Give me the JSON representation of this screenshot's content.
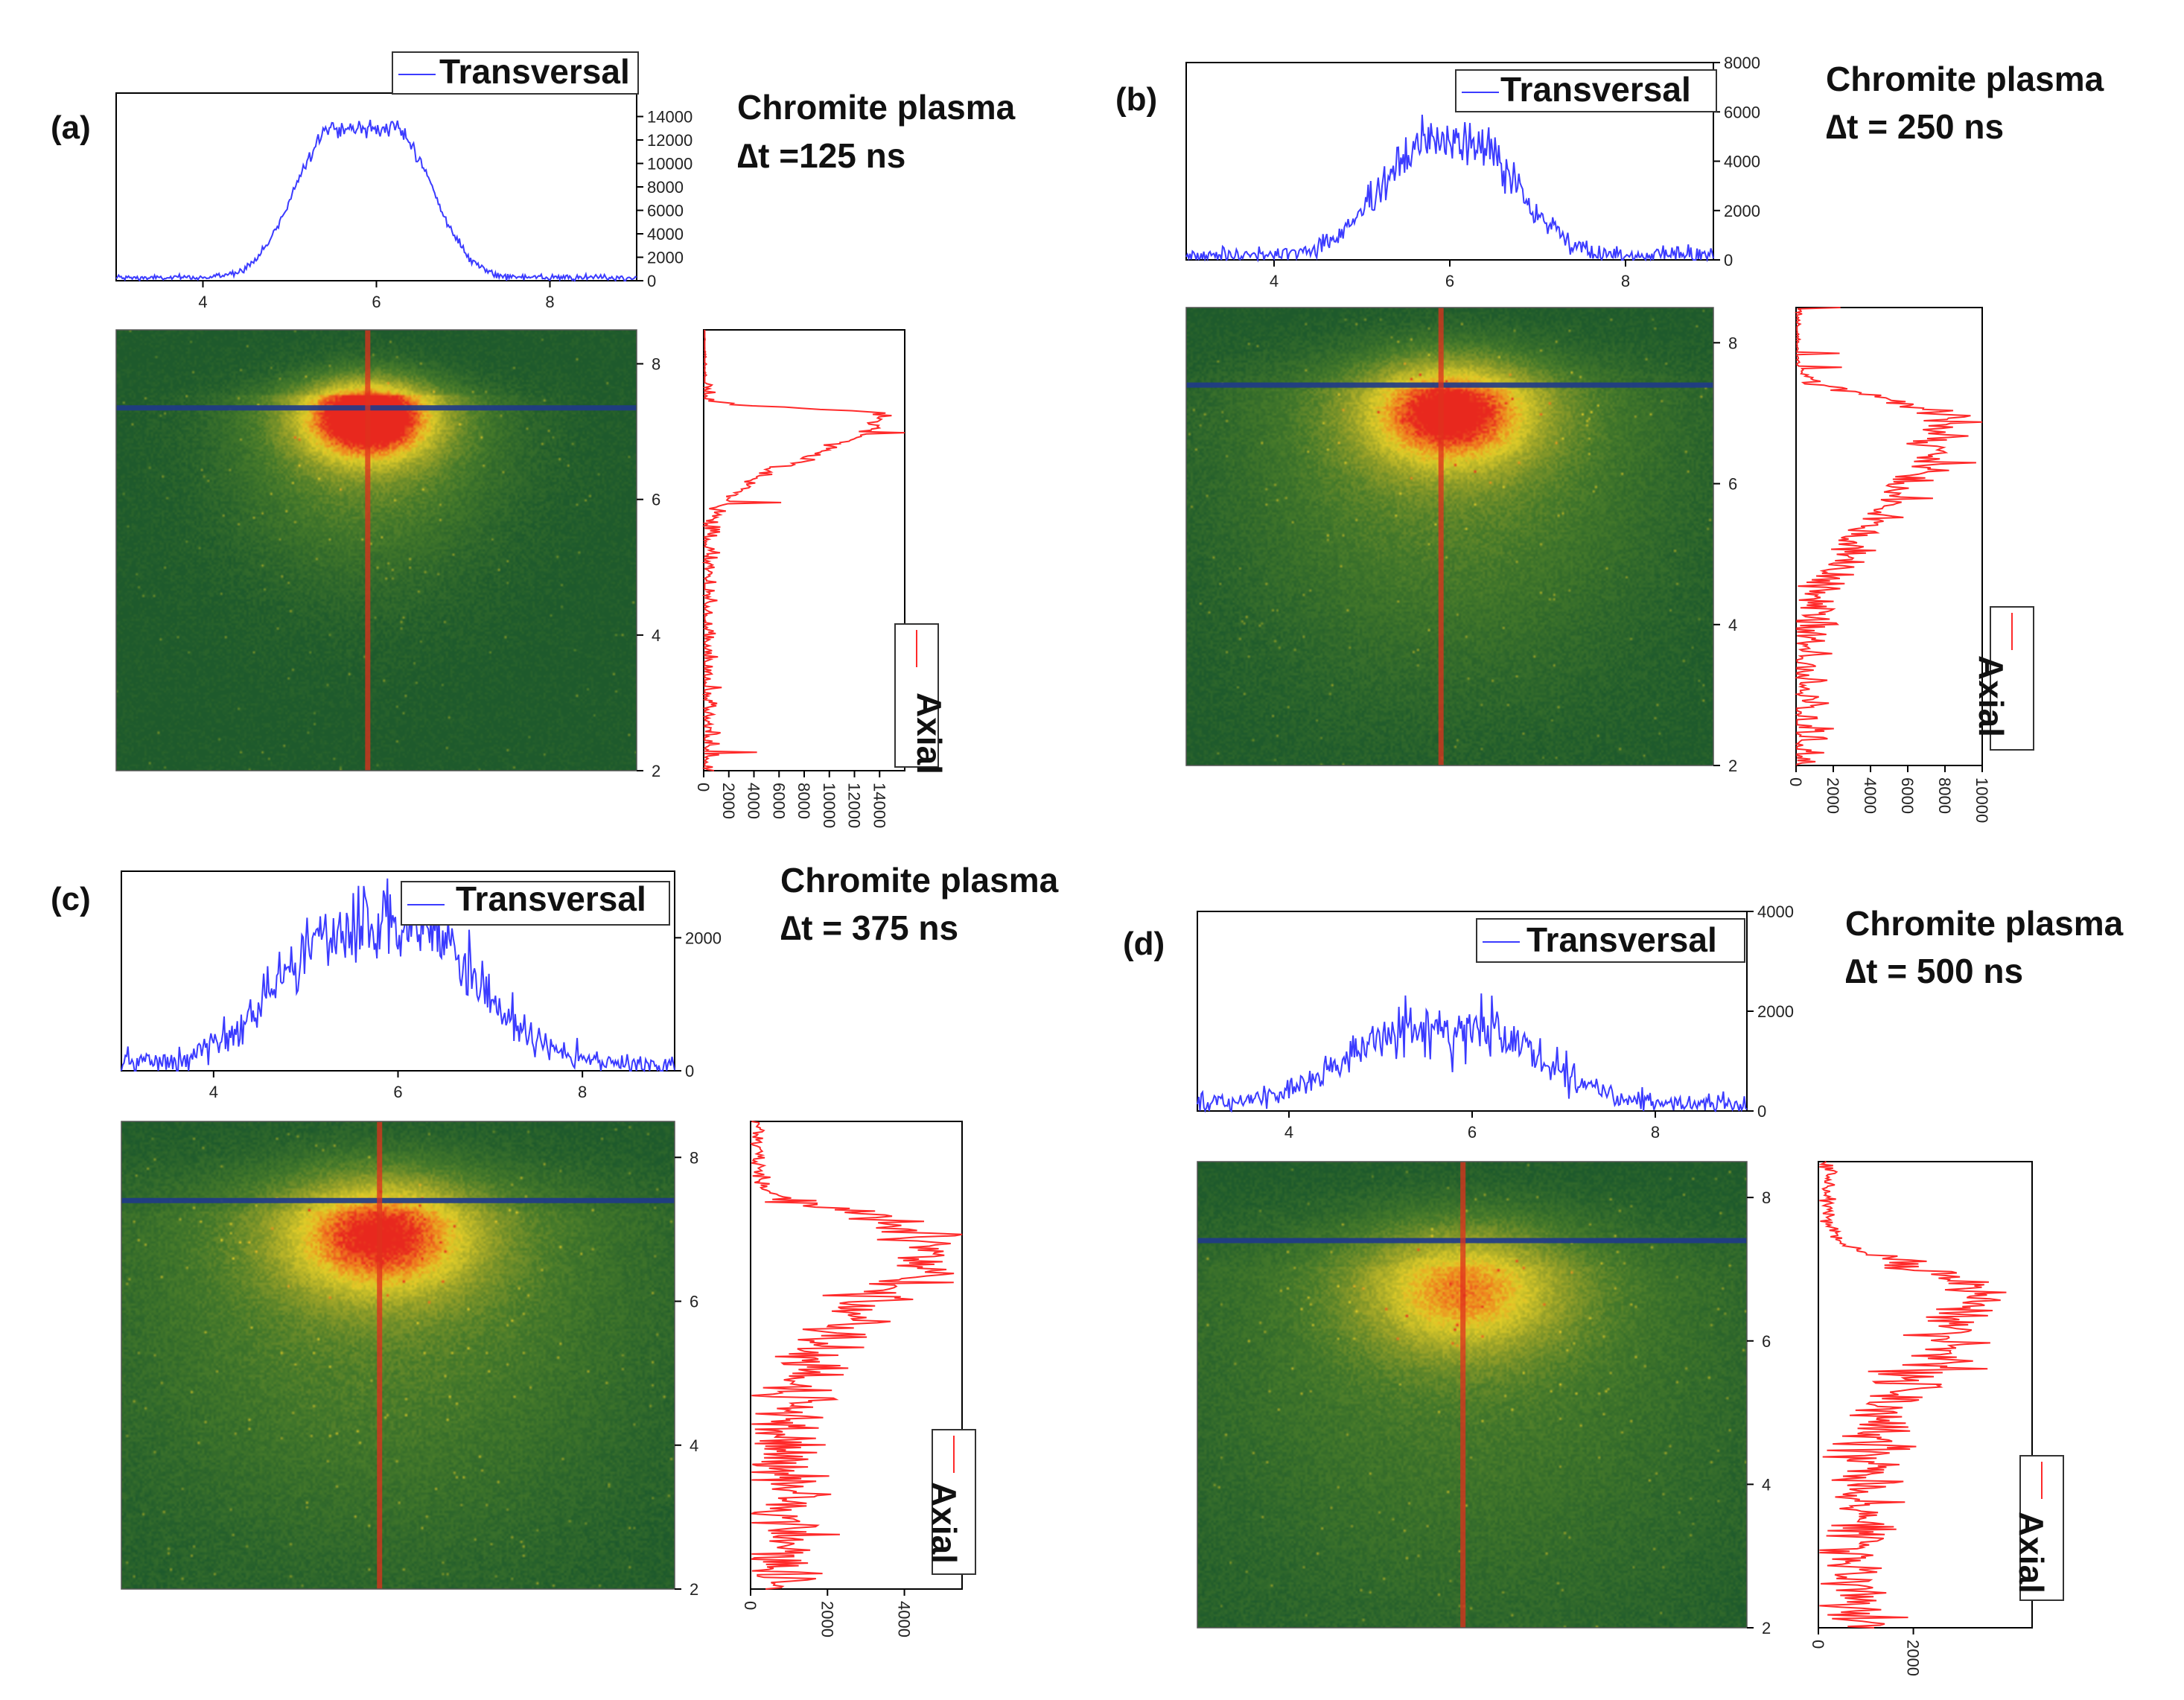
{
  "colors": {
    "transversal": "#3b3bff",
    "axial": "#ff2a2a",
    "cursor_h": "#1f3a8a",
    "cursor_v": "#e0301e",
    "image_bg": "#1e5a2c",
    "axis": "#000000"
  },
  "chart_data": [
    {
      "type": "line",
      "panel": "(a)",
      "title": "Chromite plasma",
      "delay": "∆t =125 ns",
      "transversal": {
        "legend": "Transversal",
        "xlim": [
          3,
          9
        ],
        "ylim": [
          0,
          16000
        ],
        "xticks": [
          4,
          6,
          8
        ],
        "yticks": [
          0,
          2000,
          4000,
          6000,
          8000,
          10000,
          12000,
          14000
        ],
        "profile": {
          "center": 5.85,
          "width": 0.62,
          "peak": 13000,
          "base": 250,
          "noise": 350,
          "flat": 0.35
        }
      },
      "image": {
        "xlim": [
          3,
          9
        ],
        "ylim": [
          2,
          8.5
        ],
        "yticks": [
          2,
          4,
          6,
          8
        ],
        "cursor_x": 5.9,
        "cursor_y": 7.35,
        "hot_x": 5.9,
        "hot_y": 7.2,
        "spread": 0.55,
        "halo": 1.1,
        "intensity": 1.0
      },
      "axial": {
        "legend": "Axial",
        "ylim": [
          2,
          8.5
        ],
        "xlim": [
          0,
          16000
        ],
        "xticks": [
          0,
          2000,
          4000,
          6000,
          8000,
          10000,
          12000,
          14000
        ],
        "profile": {
          "peak_pos": 7.25,
          "peak": 14000,
          "rise": 0.12,
          "decay": 0.85,
          "base": 200,
          "noise": 500
        }
      }
    },
    {
      "type": "line",
      "panel": "(b)",
      "title": "Chromite plasma",
      "delay": "∆t = 250 ns",
      "transversal": {
        "legend": "Transversal",
        "xlim": [
          3,
          9
        ],
        "ylim": [
          0,
          8000
        ],
        "xticks": [
          4,
          6,
          8
        ],
        "yticks": [
          0,
          2000,
          4000,
          6000,
          8000
        ],
        "profile": {
          "center": 6.0,
          "width": 0.8,
          "peak": 4800,
          "base": 200,
          "noise": 500,
          "flat": 0.2
        }
      },
      "image": {
        "xlim": [
          3,
          9
        ],
        "ylim": [
          2,
          8.5
        ],
        "yticks": [
          2,
          4,
          6,
          8
        ],
        "cursor_x": 5.9,
        "cursor_y": 7.4,
        "hot_x": 6.0,
        "hot_y": 7.0,
        "spread": 0.7,
        "halo": 1.8,
        "intensity": 0.85
      },
      "axial": {
        "legend": "Axial",
        "ylim": [
          2,
          8.5
        ],
        "xlim": [
          0,
          10000
        ],
        "xticks": [
          0,
          2000,
          4000,
          6000,
          8000,
          10000
        ],
        "profile": {
          "peak_pos": 6.95,
          "peak": 7800,
          "rise": 0.35,
          "decay": 1.8,
          "base": 300,
          "noise": 700
        }
      }
    },
    {
      "type": "line",
      "panel": "(c)",
      "title": "Chromite plasma",
      "delay": "∆t = 375 ns",
      "transversal": {
        "legend": "Transversal",
        "xlim": [
          3,
          9
        ],
        "ylim": [
          0,
          3000
        ],
        "xticks": [
          4,
          6,
          8
        ],
        "yticks": [
          0,
          2000
        ],
        "profile": {
          "center": 5.8,
          "width": 1.0,
          "peak": 2150,
          "base": 100,
          "noise": 280,
          "flat": 0.35
        }
      },
      "image": {
        "xlim": [
          3,
          9
        ],
        "ylim": [
          2,
          8.5
        ],
        "yticks": [
          2,
          4,
          6,
          8
        ],
        "cursor_x": 5.8,
        "cursor_y": 7.4,
        "hot_x": 5.8,
        "hot_y": 6.9,
        "spread": 0.75,
        "halo": 2.2,
        "intensity": 0.8
      },
      "axial": {
        "legend": "Axial",
        "ylim": [
          2,
          8.5
        ],
        "xlim": [
          0,
          5500
        ],
        "xticks": [
          0,
          2000,
          4000
        ],
        "profile": {
          "peak_pos": 6.95,
          "peak": 4800,
          "rise": 0.35,
          "decay": 1.3,
          "base": 900,
          "noise": 550
        }
      }
    },
    {
      "type": "line",
      "panel": "(d)",
      "title": "Chromite plasma",
      "delay": "∆t = 500 ns",
      "transversal": {
        "legend": "Transversal",
        "xlim": [
          3,
          9
        ],
        "ylim": [
          0,
          4000
        ],
        "xticks": [
          4,
          6,
          8
        ],
        "yticks": [
          0,
          2000,
          4000
        ],
        "profile": {
          "center": 5.7,
          "width": 1.05,
          "peak": 1650,
          "base": 150,
          "noise": 280,
          "flat": 0.3
        }
      },
      "image": {
        "xlim": [
          3,
          9
        ],
        "ylim": [
          2,
          8.5
        ],
        "yticks": [
          2,
          4,
          6,
          8
        ],
        "cursor_x": 5.9,
        "cursor_y": 7.4,
        "hot_x": 5.9,
        "hot_y": 6.7,
        "spread": 0.8,
        "halo": 2.4,
        "intensity": 0.65
      },
      "axial": {
        "legend": "Axial",
        "ylim": [
          2,
          8.5
        ],
        "xlim": [
          0,
          4500
        ],
        "xticks": [
          0,
          2000
        ],
        "profile": {
          "peak_pos": 6.7,
          "peak": 3300,
          "rise": 0.45,
          "decay": 1.4,
          "base": 900,
          "noise": 420
        }
      }
    }
  ]
}
